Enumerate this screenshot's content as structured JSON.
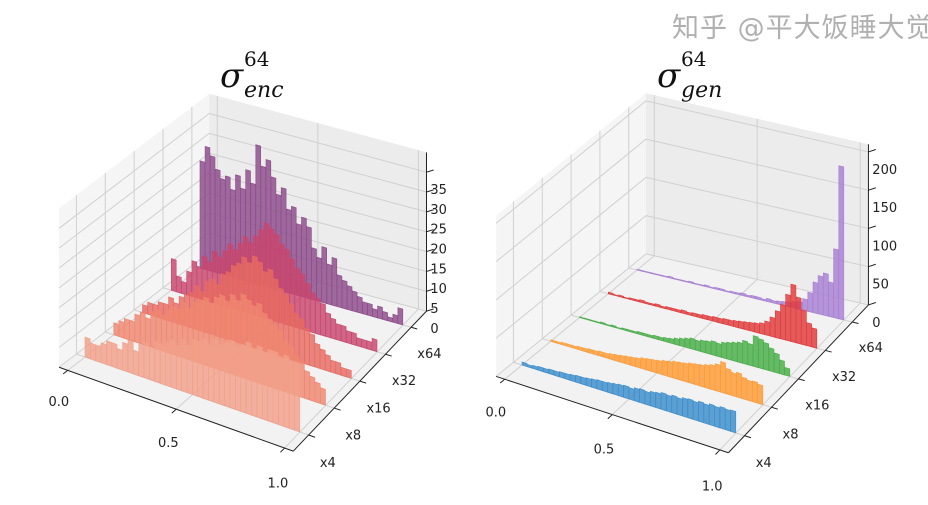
{
  "chart_data": [
    {
      "type": "bar",
      "subtype": "3d-histogram",
      "title": {
        "symbol": "σ",
        "superscript": "64",
        "subscript": "enc"
      },
      "x_range": [
        0,
        1
      ],
      "xticks": [
        "0.0",
        "0.5",
        "1.0"
      ],
      "xtick_values": [
        0,
        0.5,
        1
      ],
      "zlim": [
        0,
        40
      ],
      "zticks": [
        0,
        5,
        10,
        15,
        20,
        25,
        30,
        35
      ],
      "grid": true,
      "series": [
        {
          "name": "x4",
          "color": "#f2a08a",
          "values": [
            5,
            4,
            4,
            5,
            6,
            6,
            5,
            7,
            8,
            6,
            8,
            9,
            8,
            10,
            10,
            11,
            12,
            11,
            13,
            12,
            14,
            14,
            15,
            14,
            16,
            15,
            16,
            17,
            16,
            17,
            18,
            17,
            18,
            17,
            18,
            18,
            17,
            18,
            17,
            17
          ]
        },
        {
          "name": "x8",
          "color": "#ef8670",
          "values": [
            3,
            4,
            5,
            5,
            7,
            8,
            7,
            9,
            10,
            9,
            11,
            12,
            12,
            14,
            13,
            15,
            16,
            17,
            16,
            18,
            19,
            18,
            20,
            19,
            21,
            20,
            19,
            20,
            18,
            17,
            16,
            15,
            13,
            12,
            10,
            9,
            7,
            6,
            5,
            4
          ]
        },
        {
          "name": "x16",
          "color": "#e66a62",
          "values": [
            2,
            3,
            3,
            4,
            4,
            6,
            5,
            7,
            8,
            9,
            11,
            10,
            13,
            14,
            13,
            16,
            17,
            19,
            20,
            22,
            21,
            23,
            22,
            20,
            21,
            19,
            17,
            16,
            14,
            12,
            11,
            9,
            8,
            6,
            5,
            4,
            3,
            3,
            2,
            2
          ]
        },
        {
          "name": "x32",
          "color": "#c8466e",
          "values": [
            8,
            4,
            3,
            6,
            9,
            8,
            11,
            10,
            13,
            12,
            14,
            16,
            15,
            17,
            19,
            18,
            20,
            22,
            24,
            23,
            22,
            20,
            19,
            17,
            15,
            14,
            12,
            10,
            9,
            8,
            6,
            5,
            4,
            4,
            3,
            3,
            2,
            2,
            2,
            3
          ]
        },
        {
          "name": "x64",
          "color": "#8c4a8a",
          "values": [
            27,
            31,
            29,
            26,
            24,
            25,
            22,
            26,
            23,
            28,
            25,
            35,
            30,
            32,
            28,
            24,
            26,
            21,
            22,
            18,
            20,
            18,
            13,
            11,
            14,
            10,
            12,
            8,
            7,
            6,
            5,
            4,
            3,
            3,
            2,
            3,
            2,
            1,
            2,
            4
          ]
        }
      ]
    },
    {
      "type": "bar",
      "subtype": "3d-histogram",
      "title": {
        "symbol": "σ",
        "superscript": "64",
        "subscript": "gen"
      },
      "x_range": [
        0,
        1
      ],
      "xticks": [
        "0.0",
        "0.5",
        "1.0"
      ],
      "xtick_values": [
        0,
        0.5,
        1
      ],
      "zlim": [
        0,
        210
      ],
      "zticks": [
        0,
        50,
        100,
        150,
        200
      ],
      "grid": true,
      "series": [
        {
          "name": "x4",
          "color": "#3a8ccc",
          "values": [
            4,
            3,
            4,
            5,
            5,
            6,
            6,
            7,
            7,
            8,
            9,
            9,
            10,
            11,
            12,
            12,
            13,
            14,
            15,
            16,
            15,
            17,
            18,
            17,
            19,
            20,
            22,
            21,
            23,
            22,
            24,
            25,
            24,
            26,
            25,
            27,
            26,
            28,
            27,
            28
          ]
        },
        {
          "name": "x8",
          "color": "#ff9a33",
          "values": [
            2,
            2,
            3,
            3,
            3,
            4,
            4,
            5,
            5,
            6,
            6,
            7,
            8,
            9,
            10,
            11,
            12,
            14,
            15,
            16,
            17,
            19,
            20,
            22,
            23,
            24,
            26,
            27,
            28,
            30,
            32,
            35,
            40,
            33,
            30,
            32,
            28,
            26,
            27,
            25
          ]
        },
        {
          "name": "x16",
          "color": "#47ad47",
          "values": [
            1,
            1,
            1,
            1,
            2,
            1,
            2,
            1,
            2,
            2,
            2,
            3,
            3,
            3,
            4,
            4,
            5,
            6,
            8,
            10,
            12,
            14,
            13,
            15,
            16,
            18,
            17,
            20,
            22,
            24,
            26,
            30,
            28,
            40,
            38,
            35,
            30,
            25,
            18,
            10
          ]
        },
        {
          "name": "x32",
          "color": "#e0393a",
          "values": [
            2,
            1,
            2,
            1,
            2,
            2,
            3,
            2,
            2,
            3,
            2,
            3,
            3,
            3,
            4,
            3,
            4,
            4,
            5,
            5,
            6,
            6,
            7,
            7,
            8,
            9,
            10,
            11,
            12,
            14,
            18,
            25,
            35,
            45,
            60,
            75,
            60,
            45,
            30,
            25
          ]
        },
        {
          "name": "x64",
          "color": "#a87fd4",
          "values": [
            1,
            1,
            1,
            1,
            1,
            1,
            2,
            1,
            1,
            1,
            2,
            1,
            1,
            2,
            1,
            2,
            2,
            1,
            2,
            2,
            3,
            2,
            3,
            3,
            2,
            4,
            3,
            4,
            5,
            6,
            8,
            10,
            15,
            25,
            40,
            50,
            55,
            45,
            90,
            200
          ]
        }
      ]
    }
  ],
  "watermark": "知乎 @平大饭睡大觉"
}
